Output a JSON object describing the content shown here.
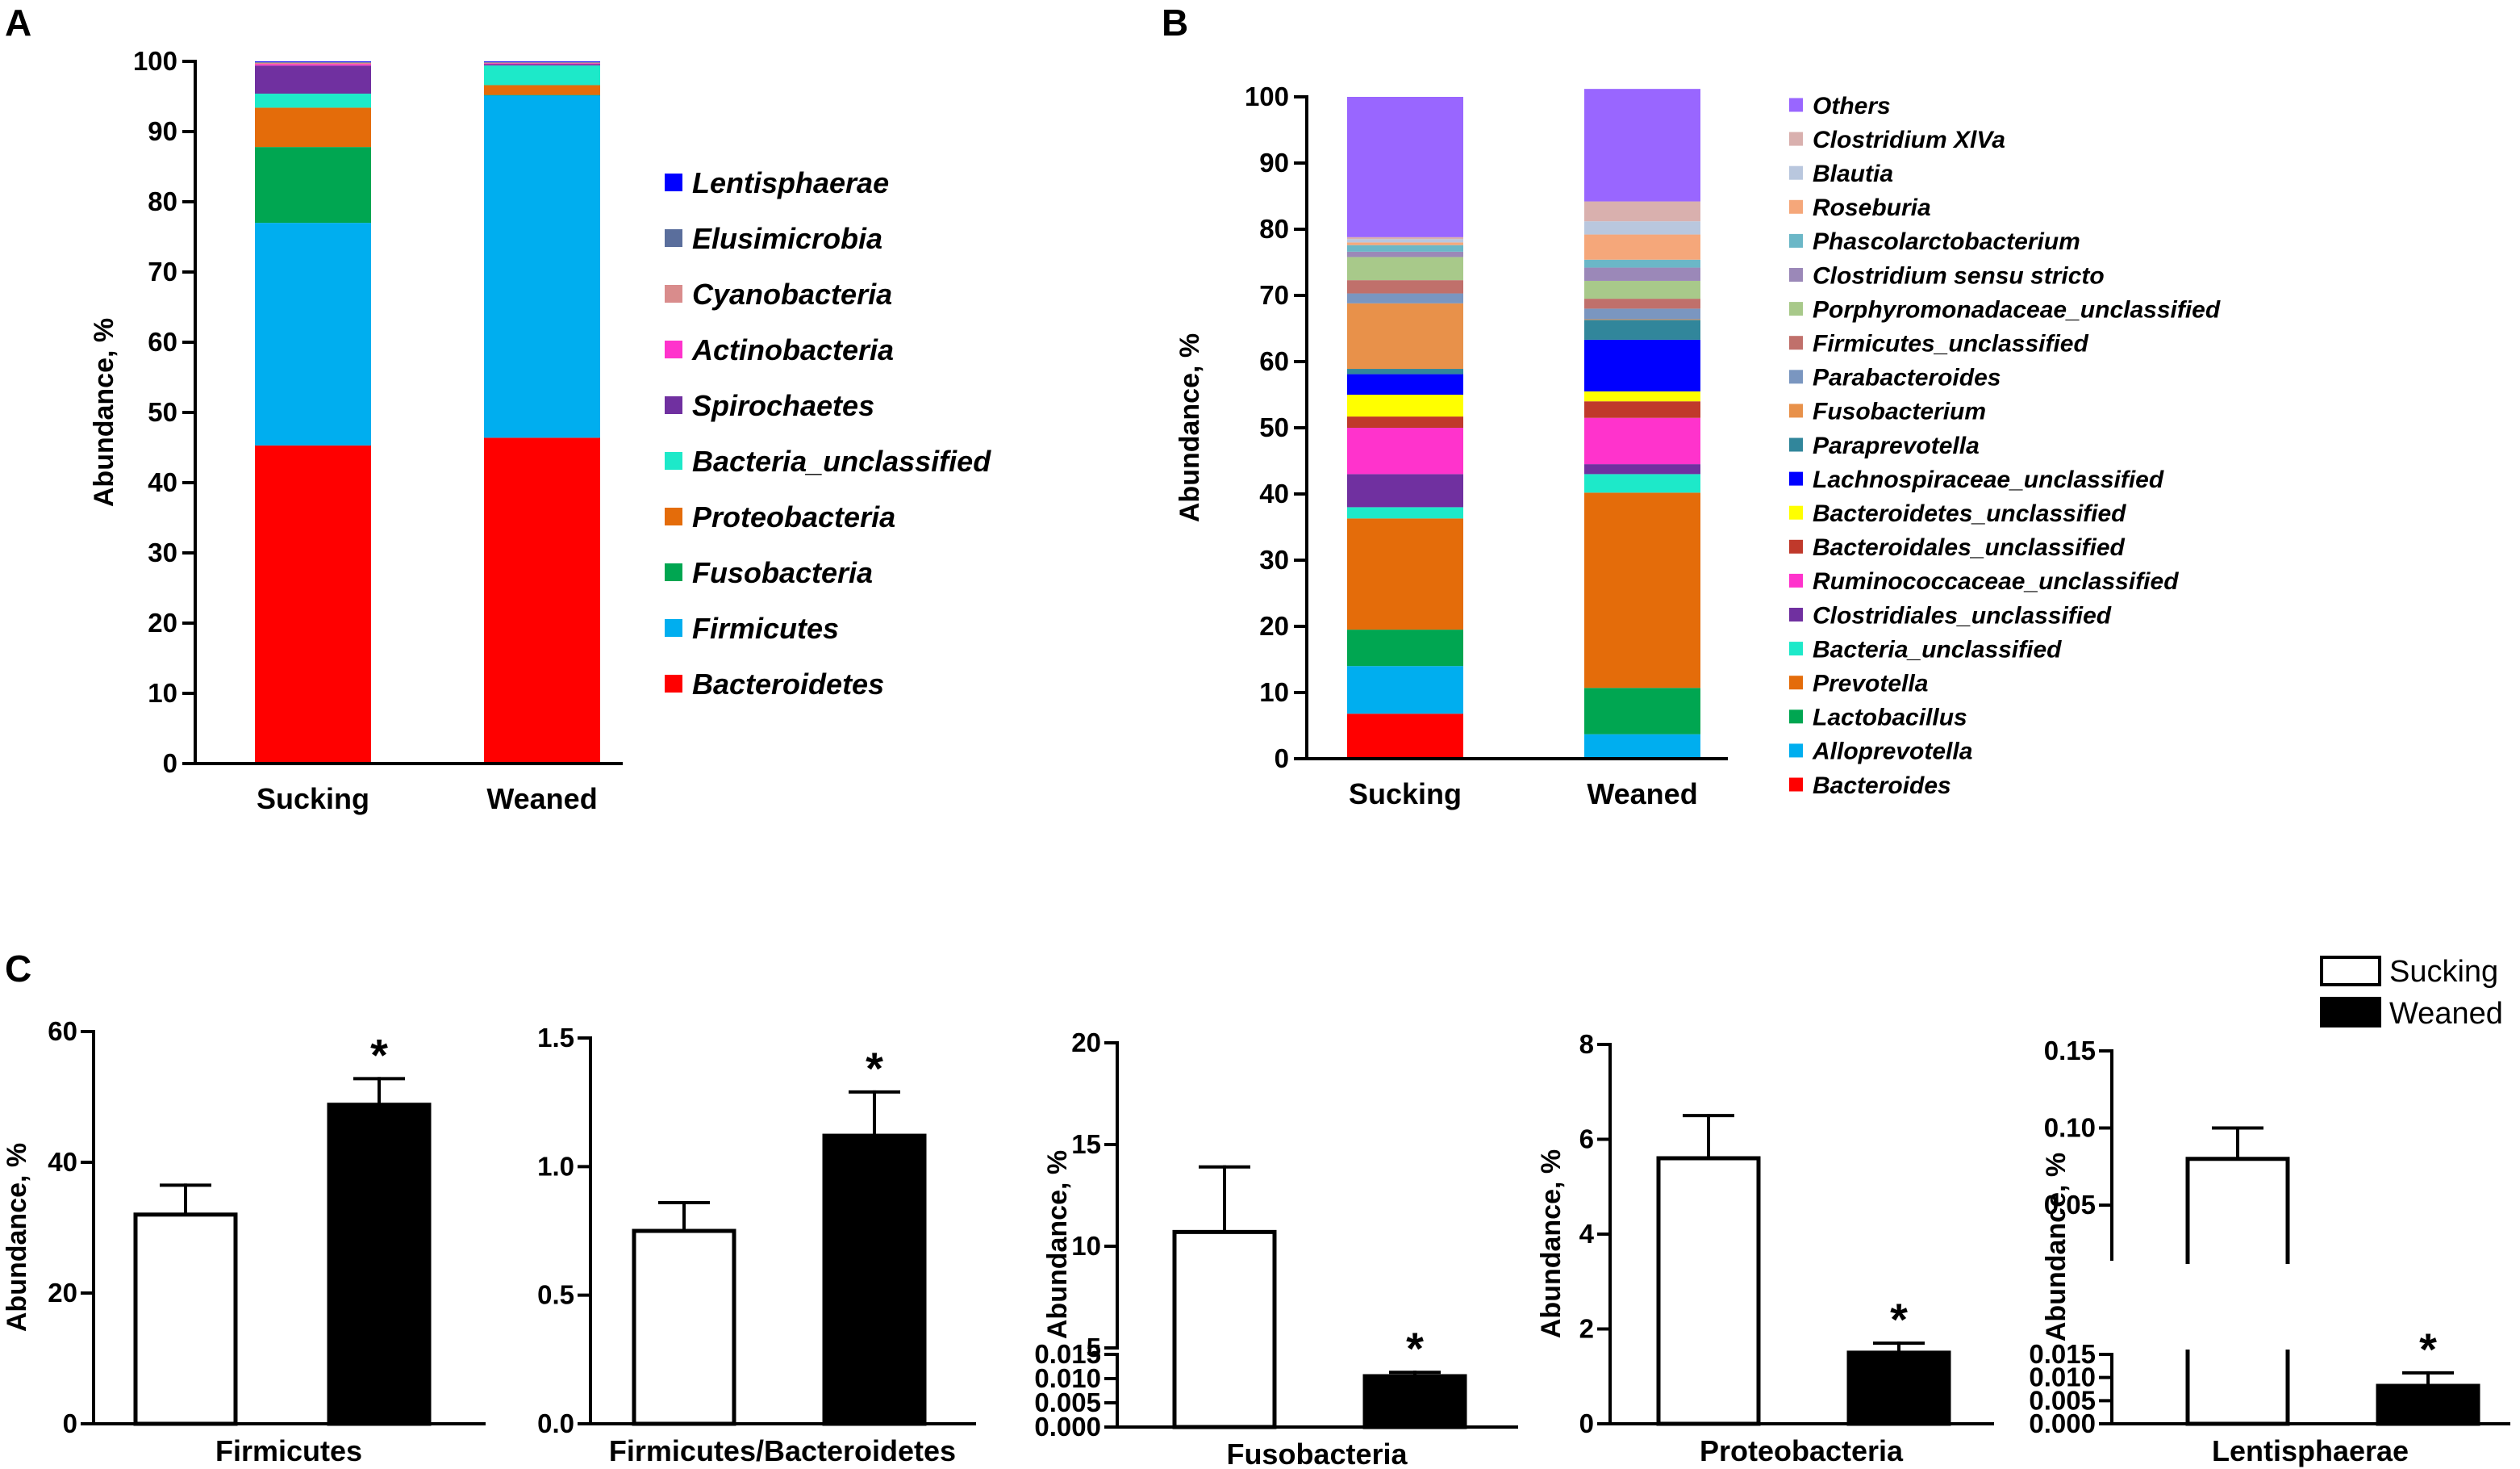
{
  "chart_data": [
    {
      "panel": "A",
      "type": "bar",
      "stacked": true,
      "ylabel": "Abundance, %",
      "ylim": [
        0,
        100
      ],
      "yticks": [
        "0",
        "10",
        "20",
        "30",
        "40",
        "50",
        "60",
        "70",
        "80",
        "90",
        "100"
      ],
      "categories": [
        "Sucking",
        "Weaned"
      ],
      "series": [
        {
          "name": "Bacteroidetes",
          "color": "#ff0000",
          "values": [
            45.3,
            46.4
          ]
        },
        {
          "name": "Firmicutes",
          "color": "#00aeef",
          "values": [
            31.7,
            48.8
          ]
        },
        {
          "name": "Fusobacteria",
          "color": "#00a651",
          "values": [
            10.8,
            0.01
          ]
        },
        {
          "name": "Proteobacteria",
          "color": "#e46c0a",
          "values": [
            5.6,
            1.4
          ]
        },
        {
          "name": "Bacteria_unclassified",
          "color": "#1de9c9",
          "values": [
            2.0,
            2.8
          ]
        },
        {
          "name": "Spirochaetes",
          "color": "#7030a0",
          "values": [
            4.0,
            0.2
          ]
        },
        {
          "name": "Actinobacteria",
          "color": "#ff33cc",
          "values": [
            0.2,
            0.1
          ]
        },
        {
          "name": "Cyanobacteria",
          "color": "#d98c8c",
          "values": [
            0.2,
            0.1
          ]
        },
        {
          "name": "Elusimicrobia",
          "color": "#5a6e9c",
          "values": [
            0.1,
            0.1
          ]
        },
        {
          "name": "Lentisphaerae",
          "color": "#0000ff",
          "values": [
            0.1,
            0.1
          ]
        }
      ]
    },
    {
      "panel": "B",
      "type": "bar",
      "stacked": true,
      "ylabel": "Abundance, %",
      "ylim": [
        0,
        100
      ],
      "yticks": [
        "0",
        "10",
        "20",
        "30",
        "40",
        "50",
        "60",
        "70",
        "80",
        "90",
        "100"
      ],
      "categories": [
        "Sucking",
        "Weaned"
      ],
      "series": [
        {
          "name": "Bacteroides",
          "color": "#ff0000",
          "values": [
            6.8,
            0.2
          ]
        },
        {
          "name": "Alloprevotella",
          "color": "#00aeef",
          "values": [
            7.2,
            3.5
          ]
        },
        {
          "name": "Lactobacillus",
          "color": "#00a651",
          "values": [
            5.5,
            7.0
          ]
        },
        {
          "name": "Prevotella",
          "color": "#e46c0a",
          "values": [
            16.8,
            29.5
          ]
        },
        {
          "name": "Bacteria_unclassified",
          "color": "#1de9c9",
          "values": [
            1.7,
            2.8
          ]
        },
        {
          "name": "Clostridiales_unclassified",
          "color": "#7030a0",
          "values": [
            5.0,
            1.5
          ]
        },
        {
          "name": "Ruminococcaceae_unclassified",
          "color": "#ff33cc",
          "values": [
            7.0,
            7.0
          ]
        },
        {
          "name": "Bacteroidales_unclassified",
          "color": "#c0392b",
          "values": [
            1.7,
            2.5
          ]
        },
        {
          "name": "Bacteroidetes_unclassified",
          "color": "#ffff00",
          "values": [
            3.3,
            1.5
          ]
        },
        {
          "name": "Lachnospiraceae_unclassified",
          "color": "#0000ff",
          "values": [
            3.1,
            7.8
          ]
        },
        {
          "name": "Paraprevotella",
          "color": "#31869b",
          "values": [
            0.8,
            3.0
          ]
        },
        {
          "name": "Fusobacterium",
          "color": "#e8914a",
          "values": [
            9.9,
            0.1
          ]
        },
        {
          "name": "Parabacteroides",
          "color": "#7a96c0",
          "values": [
            1.5,
            1.6
          ]
        },
        {
          "name": "Firmicutes_unclassified",
          "color": "#c0706b",
          "values": [
            2.0,
            1.5
          ]
        },
        {
          "name": "Porphyromonadaceae_unclassified",
          "color": "#a8c98a",
          "values": [
            3.5,
            2.7
          ]
        },
        {
          "name": "Clostridium sensu stricto",
          "color": "#9b88b8",
          "values": [
            0.8,
            2.0
          ]
        },
        {
          "name": "Phascolarctobacterium",
          "color": "#6bb7c7",
          "values": [
            1.0,
            1.2
          ]
        },
        {
          "name": "Roseburia",
          "color": "#f5a77a",
          "values": [
            0.4,
            3.8
          ]
        },
        {
          "name": "Blautia",
          "color": "#b9c7de",
          "values": [
            0.5,
            2.0
          ]
        },
        {
          "name": "Clostridium XlVa",
          "color": "#d9b0ae",
          "values": [
            0.3,
            3.0
          ]
        },
        {
          "name": "Others",
          "color": "#9966ff",
          "values": [
            21.2,
            17.0
          ]
        }
      ]
    },
    {
      "panel": "C",
      "type": "bar",
      "legend": [
        "Sucking",
        "Weaned"
      ],
      "subplots": [
        {
          "xlabel": "Firmicutes",
          "ylabel": "Abundance, %",
          "ylim": [
            0,
            60
          ],
          "yticks": [
            "0",
            "20",
            "40",
            "60"
          ],
          "sucking": 32.0,
          "sucking_err": 4.5,
          "weaned": 48.8,
          "weaned_err": 4.0,
          "significance": "*"
        },
        {
          "xlabel": "Firmicutes/Bacteroidetes",
          "ylabel": "",
          "ylim": [
            0,
            1.5
          ],
          "yticks": [
            "0.0",
            "0.5",
            "1.0",
            "1.5"
          ],
          "sucking": 0.75,
          "sucking_err": 0.11,
          "weaned": 1.12,
          "weaned_err": 0.17,
          "significance": "*"
        },
        {
          "xlabel": "Fusobacteria",
          "ylabel": "Abundance, %",
          "broken_axis": true,
          "lower_range": [
            0,
            0.015
          ],
          "lower_ticks": [
            "0.000",
            "0.005",
            "0.010",
            "0.015"
          ],
          "upper_range": [
            5,
            20
          ],
          "upper_ticks": [
            "5",
            "10",
            "15",
            "20"
          ],
          "sucking": 10.7,
          "sucking_err": 3.2,
          "weaned": 0.0105,
          "weaned_err": 0.0008,
          "significance": "*"
        },
        {
          "xlabel": "Proteobacteria",
          "ylabel": "Abundance, %",
          "ylim": [
            0,
            8
          ],
          "yticks": [
            "0",
            "2",
            "4",
            "6",
            "8"
          ],
          "sucking": 5.6,
          "sucking_err": 0.9,
          "weaned": 1.5,
          "weaned_err": 0.2,
          "significance": "*"
        },
        {
          "xlabel": "Lentisphaerae",
          "ylabel": "Abundance, %",
          "broken_axis": true,
          "lower_range": [
            0,
            0.015
          ],
          "lower_ticks": [
            "0.000",
            "0.005",
            "0.010",
            "0.015"
          ],
          "upper_range": [
            0.015,
            0.15
          ],
          "upper_ticks": [
            "0.05",
            "0.10",
            "0.15"
          ],
          "sucking": 0.08,
          "sucking_err": 0.02,
          "weaned": 0.0082,
          "weaned_err": 0.0028,
          "significance": "*"
        }
      ]
    }
  ],
  "panels": {
    "a": "A",
    "b": "B",
    "c": "C"
  }
}
